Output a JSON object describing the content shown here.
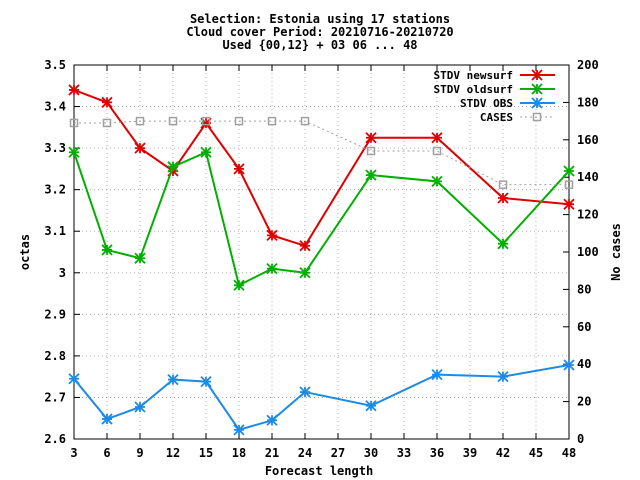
{
  "title_lines": [
    "Selection: Estonia using    17 stations",
    "Cloud cover   Period: 20210716-20210720",
    "Used {00,12} + 03 06 ... 48"
  ],
  "chart_data": {
    "type": "line",
    "title": "Selection: Estonia using    17 stations / Cloud cover   Period: 20210716-20210720 / Used {00,12} + 03 06 ... 48",
    "xlabel": "Forecast length",
    "ylabel": "octas",
    "y2label": "No cases",
    "xlim": [
      3,
      48
    ],
    "xticks": [
      3,
      6,
      9,
      12,
      15,
      18,
      21,
      24,
      27,
      30,
      33,
      36,
      39,
      42,
      45,
      48
    ],
    "ylim": [
      2.6,
      3.5
    ],
    "yticks": [
      "2.6",
      "2.7",
      "2.8",
      "2.9",
      "3",
      "3.1",
      "3.2",
      "3.3",
      "3.4",
      "3.5"
    ],
    "y2lim": [
      0,
      200
    ],
    "y2ticks": [
      "0",
      "20",
      "40",
      "60",
      "80",
      "100",
      "120",
      "140",
      "160",
      "180",
      "200"
    ],
    "grid": true,
    "legend_position": "top-right",
    "series": [
      {
        "name": "STDV newsurf",
        "color": "#e00000",
        "marker": "asterisk",
        "axis": "left",
        "x": [
          3,
          6,
          9,
          12,
          15,
          18,
          21,
          24,
          30,
          36,
          42,
          48
        ],
        "y": [
          3.44,
          3.41,
          3.3,
          3.245,
          3.36,
          3.25,
          3.09,
          3.065,
          3.325,
          3.325,
          3.18,
          3.165
        ]
      },
      {
        "name": "STDV oldsurf",
        "color": "#00b000",
        "marker": "asterisk",
        "axis": "left",
        "x": [
          3,
          6,
          9,
          12,
          15,
          18,
          21,
          24,
          30,
          36,
          42,
          48
        ],
        "y": [
          3.29,
          3.055,
          3.035,
          3.255,
          3.29,
          2.97,
          3.01,
          3.0,
          3.235,
          3.22,
          3.07,
          3.245
        ]
      },
      {
        "name": "STDV OBS",
        "color": "#1e8ae6",
        "marker": "asterisk",
        "axis": "left",
        "x": [
          3,
          6,
          9,
          12,
          15,
          18,
          21,
          24,
          30,
          36,
          42,
          48
        ],
        "y": [
          2.745,
          2.648,
          2.677,
          2.743,
          2.738,
          2.622,
          2.645,
          2.713,
          2.68,
          2.755,
          2.75,
          2.778
        ]
      },
      {
        "name": "CASES",
        "color": "#a0a0a0",
        "marker": "square",
        "axis": "right",
        "dashed": true,
        "x": [
          3,
          6,
          9,
          12,
          15,
          18,
          21,
          24,
          30,
          36,
          42,
          48
        ],
        "y": [
          169,
          169,
          170,
          170,
          170,
          170,
          170,
          170,
          154,
          154,
          136,
          136
        ]
      }
    ]
  }
}
